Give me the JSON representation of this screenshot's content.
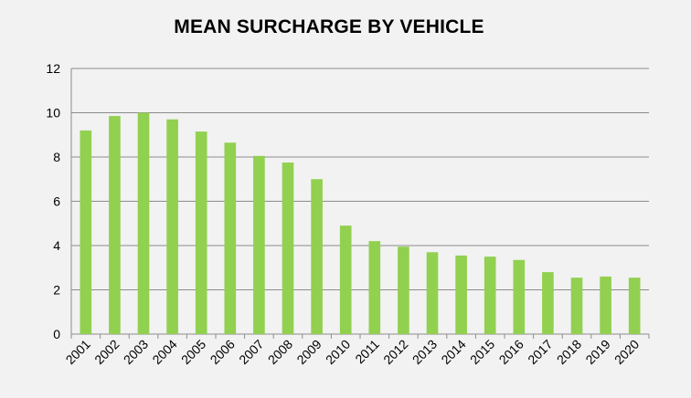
{
  "chart_data": {
    "type": "bar",
    "title": "MEAN SURCHARGE BY VEHICLE",
    "xlabel": "",
    "ylabel": "",
    "categories": [
      "2001",
      "2002",
      "2003",
      "2004",
      "2005",
      "2006",
      "2007",
      "2008",
      "2009",
      "2010",
      "2011",
      "2012",
      "2013",
      "2014",
      "2015",
      "2016",
      "2017",
      "2018",
      "2019",
      "2020"
    ],
    "values": [
      9.2,
      9.85,
      10.0,
      9.7,
      9.15,
      8.65,
      8.05,
      7.75,
      7.0,
      4.9,
      4.2,
      3.95,
      3.7,
      3.55,
      3.5,
      3.35,
      2.8,
      2.55,
      2.6,
      2.55
    ],
    "ylim": [
      0,
      12
    ],
    "yticks": [
      0,
      2,
      4,
      6,
      8,
      10,
      12
    ],
    "grid": true,
    "legend": "none",
    "bar_color": "#92d050",
    "grid_color": "#8c8c8c",
    "background_color": "#f2f2f2"
  }
}
